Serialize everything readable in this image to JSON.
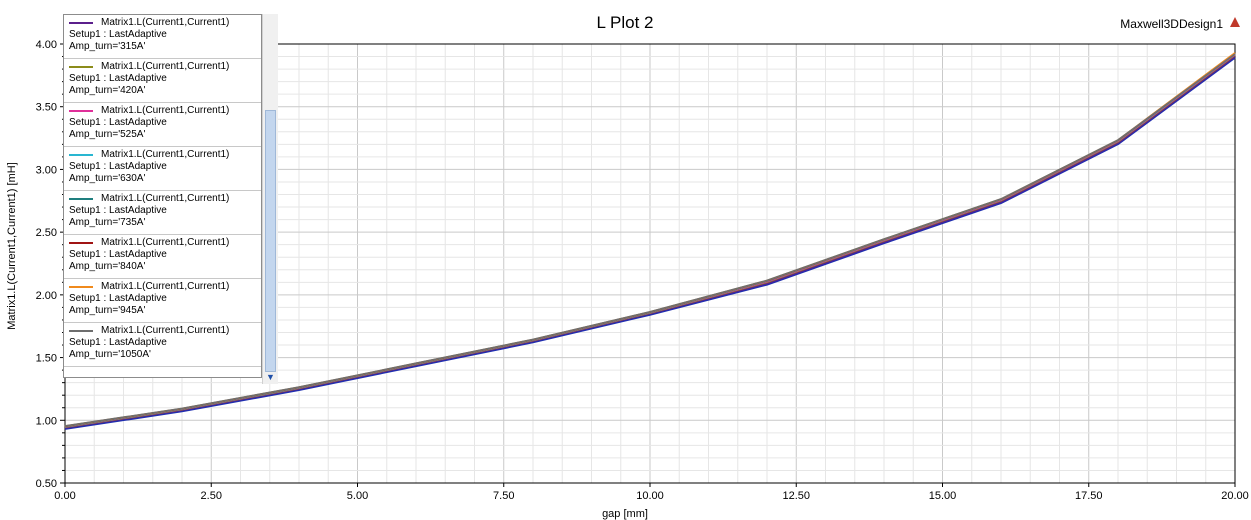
{
  "header": {
    "title": "L Plot 2",
    "design_name": "Maxwell3DDesign1",
    "design_icon": "maxwell-design-icon"
  },
  "chart_data": {
    "type": "line",
    "title": "L Plot 2",
    "xlabel": "gap [mm]",
    "ylabel": "Matrix1.L(Current1,Current1) [mH]",
    "xlim": [
      0,
      20
    ],
    "ylim": [
      0.5,
      4.0
    ],
    "grid": true,
    "legend_position": "top-left",
    "x_ticks": [
      "0.00",
      "2.50",
      "5.00",
      "7.50",
      "10.00",
      "12.50",
      "15.00",
      "17.50",
      "20.00"
    ],
    "y_ticks": [
      "0.50",
      "1.00",
      "1.50",
      "2.00",
      "2.50",
      "3.00",
      "3.50",
      "4.00"
    ],
    "x": [
      0,
      2,
      4,
      6,
      8,
      10,
      12,
      14,
      16,
      18,
      20
    ],
    "series": [
      {
        "name": "Matrix1.L(Current1,Current1)",
        "setup": "Setup1 : LastAdaptive",
        "param": "Amp_turn='315A'",
        "color": "#5b1f8c",
        "values": [
          0.94,
          1.08,
          1.25,
          1.44,
          1.63,
          1.85,
          2.09,
          2.42,
          2.74,
          3.21,
          3.9
        ]
      },
      {
        "name": "Matrix1.L(Current1,Current1)",
        "setup": "Setup1 : LastAdaptive",
        "param": "Amp_turn='420A'",
        "color": "#8c8c1a",
        "values": [
          0.945,
          1.085,
          1.255,
          1.445,
          1.635,
          1.855,
          2.1,
          2.43,
          2.75,
          3.22,
          3.91
        ]
      },
      {
        "name": "Matrix1.L(Current1,Current1)",
        "setup": "Setup1 : LastAdaptive",
        "param": "Amp_turn='525A'",
        "color": "#e0309a",
        "values": [
          0.948,
          1.088,
          1.258,
          1.448,
          1.638,
          1.858,
          2.105,
          2.435,
          2.755,
          3.225,
          3.915
        ]
      },
      {
        "name": "Matrix1.L(Current1,Current1)",
        "setup": "Setup1 : LastAdaptive",
        "param": "Amp_turn='630A'",
        "color": "#29b6d1",
        "values": [
          0.95,
          1.09,
          1.26,
          1.45,
          1.64,
          1.86,
          2.11,
          2.44,
          2.76,
          3.23,
          3.92
        ]
      },
      {
        "name": "Matrix1.L(Current1,Current1)",
        "setup": "Setup1 : LastAdaptive",
        "param": "Amp_turn='735A'",
        "color": "#1f7f7f",
        "values": [
          0.952,
          1.092,
          1.262,
          1.452,
          1.642,
          1.862,
          2.112,
          2.442,
          2.762,
          3.232,
          3.922
        ]
      },
      {
        "name": "Matrix1.L(Current1,Current1)",
        "setup": "Setup1 : LastAdaptive",
        "param": "Amp_turn='840A'",
        "color": "#a01414",
        "values": [
          0.953,
          1.093,
          1.263,
          1.453,
          1.643,
          1.863,
          2.113,
          2.443,
          2.763,
          3.233,
          3.925
        ]
      },
      {
        "name": "Matrix1.L(Current1,Current1)",
        "setup": "Setup1 : LastAdaptive",
        "param": "Amp_turn='945A'",
        "color": "#f08a1c",
        "values": [
          0.954,
          1.094,
          1.264,
          1.454,
          1.644,
          1.864,
          2.114,
          2.444,
          2.764,
          3.234,
          3.93
        ]
      },
      {
        "name": "Matrix1.L(Current1,Current1)",
        "setup": "Setup1 : LastAdaptive",
        "param": "Amp_turn='1050A'",
        "color": "#6e6e6e",
        "values": [
          0.955,
          1.095,
          1.265,
          1.455,
          1.645,
          1.865,
          2.115,
          2.445,
          2.765,
          3.235,
          3.92
        ]
      }
    ],
    "extra_series_color": "#1f2fb0"
  }
}
